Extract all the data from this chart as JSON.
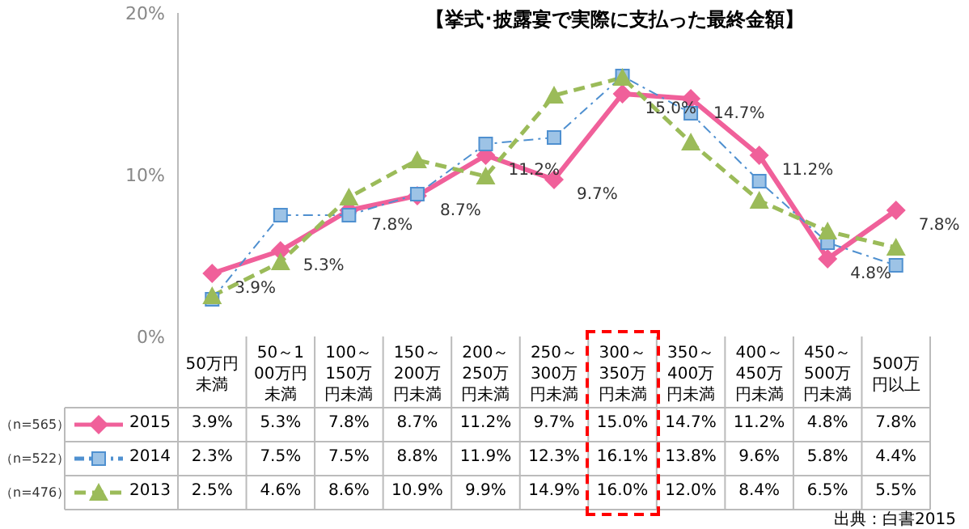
{
  "chart_data": {
    "type": "line",
    "title": "【挙式･披露宴で実際に支払った最終金額】",
    "categories": [
      "50万円未満",
      "50～100万円未満",
      "100～150万円未満",
      "150～200万円未満",
      "200～250万円未満",
      "250～300万円未満",
      "300～350万円未満",
      "350～400万円未満",
      "400～450万円未満",
      "450～500万円未満",
      "500万円以上"
    ],
    "legend": "bottom left",
    "series": [
      {
        "name": "2015",
        "color": "#f0609a",
        "marker": "diamond",
        "line_style": "solid",
        "values": [
          3.9,
          5.3,
          7.8,
          8.7,
          11.2,
          9.7,
          15.0,
          14.7,
          11.2,
          4.8,
          7.8
        ],
        "value_labels": [
          "3.9%",
          "5.3%",
          "7.8%",
          "8.7%",
          "11.2%",
          "9.7%",
          "15.0%",
          "14.7%",
          "11.2%",
          "4.8%",
          "7.8%"
        ]
      },
      {
        "name": "2014",
        "color": "#4f90d0",
        "marker": "square",
        "line_style": "dashdot",
        "values": [
          2.3,
          7.5,
          7.5,
          8.8,
          11.9,
          12.3,
          16.1,
          13.8,
          9.6,
          5.8,
          4.4
        ],
        "value_labels": [
          "2.3%",
          "7.5%",
          "7.5%",
          "8.8%",
          "11.9%",
          "12.3%",
          "16.1%",
          "13.8%",
          "9.6%",
          "5.8%",
          "4.4%"
        ]
      },
      {
        "name": "2013",
        "color": "#9bbb59",
        "marker": "triangle",
        "line_style": "dashed",
        "values": [
          2.5,
          4.6,
          8.6,
          10.9,
          9.9,
          14.9,
          16.0,
          12.0,
          8.4,
          6.5,
          5.5
        ],
        "value_labels": [
          "2.5%",
          "4.6%",
          "8.6%",
          "10.9%",
          "9.9%",
          "14.9%",
          "16.0%",
          "12.0%",
          "8.4%",
          "6.5%",
          "5.5%"
        ]
      }
    ],
    "ylim": [
      0,
      20
    ],
    "yticks": [
      {
        "value": 0,
        "label": "0%"
      },
      {
        "value": 10,
        "label": "10%"
      },
      {
        "value": 20,
        "label": "20%"
      }
    ],
    "data_labels": true,
    "annotations": [
      {
        "text": "3.9%",
        "x": "50万円未満",
        "y": 3.9
      },
      {
        "text": "5.3%",
        "x": "50～100万円未満",
        "y": 5.3
      },
      {
        "text": "7.8%",
        "x": "100～150万円未満",
        "y": 7.8
      },
      {
        "text": "8.7%",
        "x": "150～200万円未満",
        "y": 8.7
      },
      {
        "text": "11.2%",
        "x": "200～250万円未満",
        "y": 11.2
      },
      {
        "text": "9.7%",
        "x": "250～300万円未満",
        "y": 9.7
      },
      {
        "text": "15.0%",
        "x": "300～350万円未満",
        "y": 15.0
      },
      {
        "text": "14.7%",
        "x": "350～400万円未満",
        "y": 14.7
      },
      {
        "text": "11.2%",
        "x": "400～450万円未満",
        "y": 11.2
      },
      {
        "text": "4.8%",
        "x": "450～500万円未満",
        "y": 4.8
      },
      {
        "text": "7.8%",
        "x": "500万円以上",
        "y": 7.8
      },
      "（n=565）",
      "（n=522）",
      "（n=476）",
      "出典：白書2015"
    ]
  }
}
